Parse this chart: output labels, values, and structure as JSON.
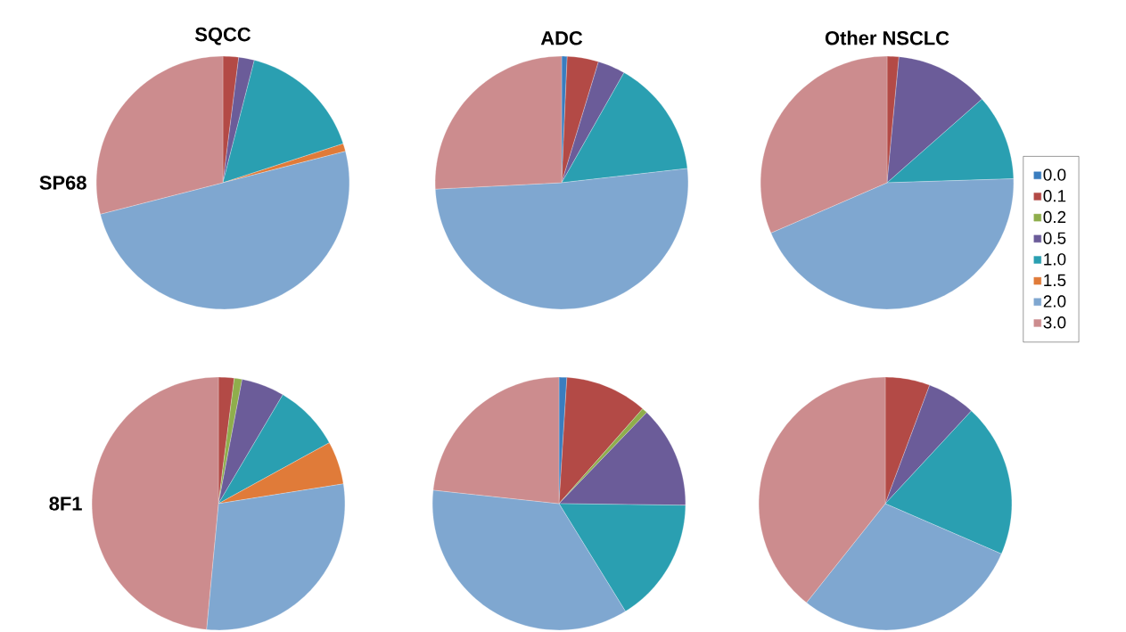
{
  "chart_data": [
    {
      "type": "pie",
      "title": "SQCC",
      "ylabel": "SP68",
      "categories": [
        null,
        null,
        null,
        null,
        null,
        null,
        null,
        null
      ],
      "values": [
        0,
        2,
        0,
        2,
        16,
        1,
        50,
        29
      ],
      "colors": [
        "#3a7dbf",
        "#b34a46",
        "#8fae4c",
        "#6b5c99",
        "#2a9fb1",
        "#e07b39",
        "#7fa7d0",
        "#cc8c8e"
      ]
    },
    {
      "type": "pie",
      "title": "ADC",
      "categories": [
        null,
        null,
        null,
        null,
        null,
        null,
        null,
        null
      ],
      "values": [
        0.7,
        4,
        0,
        3.5,
        15,
        0,
        51,
        25.8
      ],
      "colors": [
        "#3a7dbf",
        "#b34a46",
        "#8fae4c",
        "#6b5c99",
        "#2a9fb1",
        "#e07b39",
        "#7fa7d0",
        "#cc8c8e"
      ]
    },
    {
      "type": "pie",
      "title": "Other NSCLC",
      "categories": [
        "0.0",
        "0.1",
        "0.2",
        "0.5",
        "1.0",
        "1.5",
        "2.0",
        "3.0"
      ],
      "values": [
        0,
        1.5,
        0,
        12,
        11,
        0,
        44,
        31.5
      ],
      "colors": [
        "#3a7dbf",
        "#b34a46",
        "#8fae4c",
        "#6b5c99",
        "#2a9fb1",
        "#e07b39",
        "#7fa7d0",
        "#cc8c8e"
      ],
      "legend": "right"
    },
    {
      "type": "pie",
      "ylabel": "8F1",
      "categories": [
        null,
        null,
        null,
        null,
        null,
        null,
        null,
        null
      ],
      "values": [
        0,
        2,
        1,
        5.5,
        8.5,
        5.5,
        29,
        48.5
      ],
      "colors": [
        "#3a7dbf",
        "#b34a46",
        "#8fae4c",
        "#6b5c99",
        "#2a9fb1",
        "#e07b39",
        "#7fa7d0",
        "#cc8c8e"
      ]
    },
    {
      "type": "pie",
      "categories": [
        null,
        null,
        null,
        null,
        null,
        null,
        null,
        null
      ],
      "values": [
        1,
        10.5,
        0.7,
        13,
        16,
        0,
        35.5,
        23.3
      ],
      "colors": [
        "#3a7dbf",
        "#b34a46",
        "#8fae4c",
        "#6b5c99",
        "#2a9fb1",
        "#e07b39",
        "#7fa7d0",
        "#cc8c8e"
      ]
    },
    {
      "type": "pie",
      "categories": [
        null,
        null,
        null,
        null,
        null,
        null,
        null,
        null
      ],
      "values": [
        0,
        5.7,
        0,
        6.2,
        19.6,
        0,
        29.2,
        39.3
      ],
      "colors": [
        "#3a7dbf",
        "#b34a46",
        "#8fae4c",
        "#6b5c99",
        "#2a9fb1",
        "#e07b39",
        "#7fa7d0",
        "#cc8c8e"
      ]
    }
  ]
}
